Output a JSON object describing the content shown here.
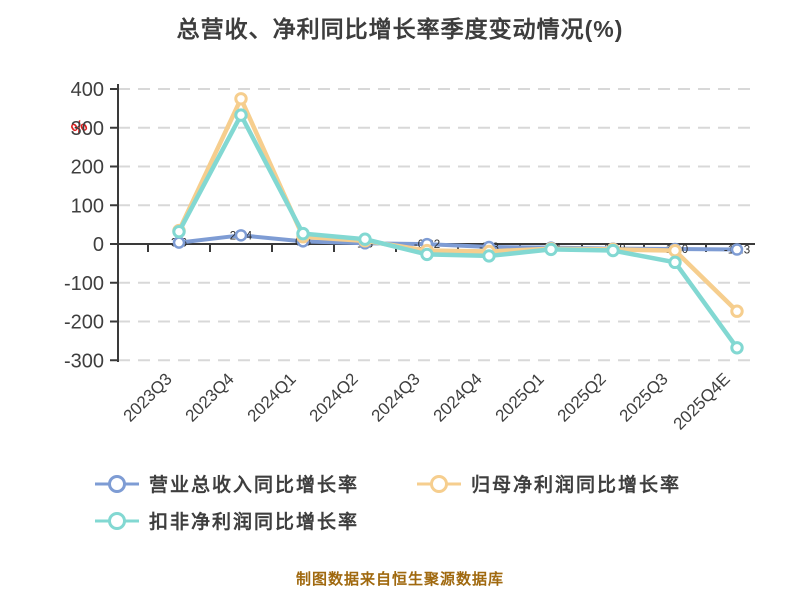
{
  "title": "总营收、净利同比增长率季度变动情况(%)",
  "y_axis_unit": "%",
  "footer": "制图数据来自恒生聚源数据库",
  "colors": {
    "revenue": "#7e9cd4",
    "net_profit": "#f6ce8e",
    "non_gaap": "#82d8d2",
    "title_text": "#3d3d3d",
    "axis_line": "#3a3a3a",
    "axis_text": "#3f3f3f",
    "grid_line": "#d8d8d8",
    "data_label_text": "#2e2e2e",
    "unit_label": "#e01f1f",
    "footer_text": "#a0690f",
    "marker_fill": "#ffffff"
  },
  "chart_data": {
    "type": "line",
    "title": "总营收、净利同比增长率季度变动情况(%)",
    "ylabel": "%",
    "ylim": [
      -300,
      400
    ],
    "ytick_interval": 100,
    "yticks": [
      400,
      300,
      200,
      100,
      0,
      -100,
      -200,
      -300
    ],
    "grid": "dashed-horizontal",
    "legend_position": "bottom",
    "categories": [
      "2023Q3",
      "2023Q4",
      "2024Q1",
      "2024Q2",
      "2024Q3",
      "2024Q4",
      "2025Q1",
      "2025Q2",
      "2025Q3",
      "2025Q4E"
    ],
    "series": [
      {
        "name": "营业总收入同比增长率",
        "color_key": "revenue",
        "values": [
          3.6,
          22.4,
          6.8,
          1.8,
          -0.22,
          -7.8,
          -9.4,
          -11.8,
          -13.0,
          -14.3
        ],
        "labels": [
          "3.6",
          "22.4",
          "6.8",
          "1.8",
          "-0.22",
          "-7.8",
          "-9.4",
          "-11.8",
          "-13.0",
          "-14.3"
        ],
        "show_labels": true
      },
      {
        "name": "归母净利润同比增长率",
        "color_key": "net_profit",
        "values": [
          34.6,
          374.8,
          18.8,
          8.2,
          -16.9,
          -19.2,
          -12.1,
          -13.8,
          -17.2,
          -173.5
        ],
        "show_labels": false
      },
      {
        "name": "扣非净利润同比增长率",
        "color_key": "non_gaap",
        "values": [
          31.8,
          332.6,
          26.8,
          12.4,
          -26.9,
          -30.8,
          -14.0,
          -16.9,
          -47.3,
          -267.8
        ],
        "show_labels": false
      }
    ]
  },
  "legend": {
    "items": [
      {
        "label": "营业总收入同比增长率"
      },
      {
        "label": "归母净利润同比增长率"
      },
      {
        "label": "扣非净利润同比增长率"
      }
    ]
  }
}
